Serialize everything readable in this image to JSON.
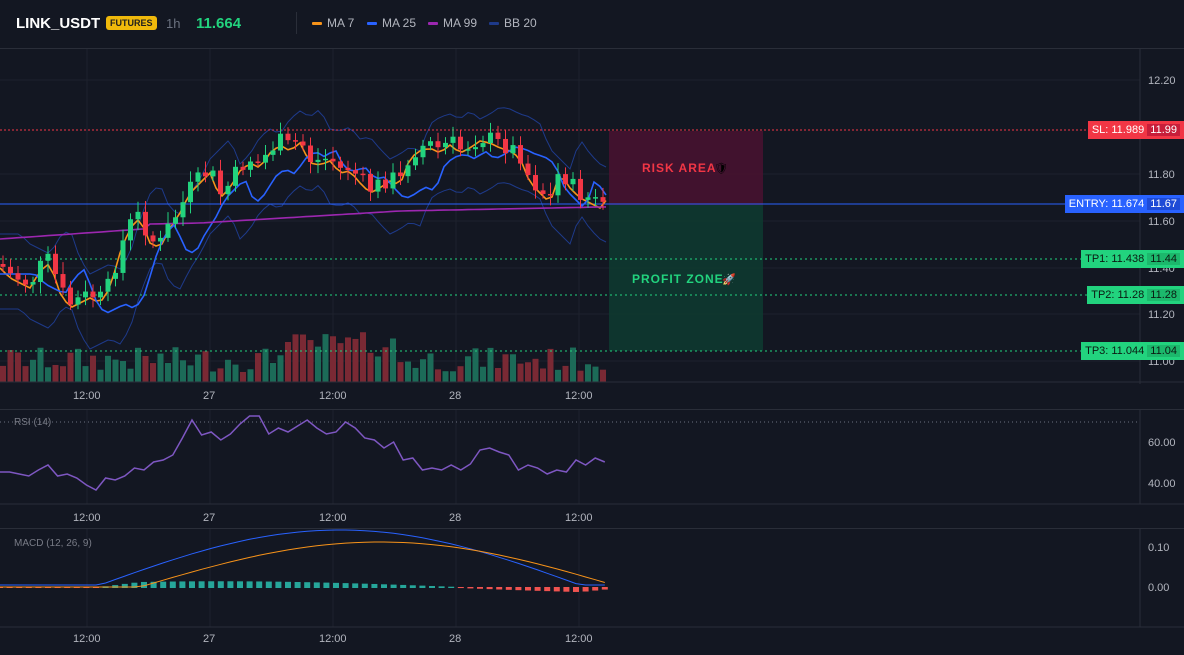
{
  "header": {
    "symbol": "LINK_USDT",
    "badge": "FUTURES",
    "timeframe": "1h",
    "last_price": "11.664",
    "legend": [
      {
        "label": "MA 7",
        "color": "#f7931a"
      },
      {
        "label": "MA 25",
        "color": "#2962ff"
      },
      {
        "label": "MA 99",
        "color": "#9c27b0"
      },
      {
        "label": "BB 20",
        "color": "#1e3a8a"
      }
    ]
  },
  "main_chart": {
    "price_axis": [
      "12.20",
      "11.80",
      "11.60",
      "11.40",
      "11.20",
      "11.00"
    ],
    "time_axis": [
      "12:00",
      "27",
      "12:00",
      "28",
      "12:00"
    ],
    "zones": {
      "risk_label": "RISK AREA",
      "profit_label": "PROFIT ZONE"
    },
    "levels": {
      "sl": {
        "tag": "SL: 11.989",
        "axis": "11.99",
        "price": 11.989,
        "color": "#f23645"
      },
      "entry": {
        "tag": "ENTRY: 11.674",
        "axis": "11.67",
        "price": 11.674,
        "color": "#2962ff"
      },
      "tp1": {
        "tag": "TP1: 11.438",
        "axis": "11.44",
        "price": 11.438,
        "color": "#22d37e"
      },
      "tp2": {
        "tag": "TP2: 11.28",
        "axis": "11.28",
        "price": 11.28,
        "color": "#22d37e"
      },
      "tp3": {
        "tag": "TP3: 11.044",
        "axis": "11.04",
        "price": 11.044,
        "color": "#22d37e"
      }
    }
  },
  "rsi": {
    "label": "RSI (14)",
    "axis": [
      "60.00",
      "40.00"
    ]
  },
  "macd": {
    "label": "MACD (12, 26, 9)",
    "axis": [
      "0.10",
      "0.00"
    ]
  },
  "colors": {
    "up": "#22d37e",
    "down": "#f23645",
    "background": "#131722"
  }
}
